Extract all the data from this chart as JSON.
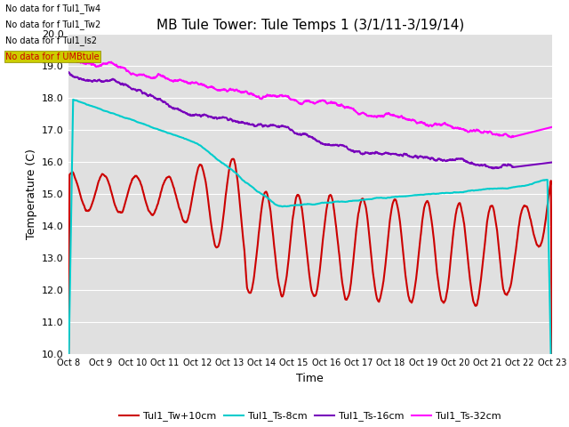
{
  "title": "MB Tule Tower: Tule Temps 1 (3/1/11-3/19/14)",
  "xlabel": "Time",
  "ylabel": "Temperature (C)",
  "ylim": [
    10.0,
    20.0
  ],
  "yticks": [
    10.0,
    11.0,
    12.0,
    13.0,
    14.0,
    15.0,
    16.0,
    17.0,
    18.0,
    19.0,
    20.0
  ],
  "bg_color": "#e0e0e0",
  "fig_color": "#ffffff",
  "grid_color": "#ffffff",
  "xtick_labels": [
    "Oct 8",
    "Oct 9",
    "Oct 10",
    "Oct 11",
    "Oct 12",
    "Oct 13",
    "Oct 14",
    "Oct 15",
    "Oct 16",
    "Oct 17",
    "Oct 18",
    "Oct 19",
    "Oct 20",
    "Oct 21",
    "Oct 22",
    "Oct 23"
  ],
  "num_points": 1500,
  "colors": {
    "Tw": "#cc0000",
    "Ts8": "#00cccc",
    "Ts16": "#7700bb",
    "Ts32": "#ff00ff"
  },
  "legend_labels": [
    "Tul1_Tw+10cm",
    "Tul1_Ts-8cm",
    "Tul1_Ts-16cm",
    "Tul1_Ts-32cm"
  ],
  "no_data_text": [
    "No data for f Tul1_Tw4",
    "No data for f Tul1_Tw2",
    "No data for f Tul1_Is2",
    "No data for f UMBtule"
  ],
  "linewidth": 1.5
}
